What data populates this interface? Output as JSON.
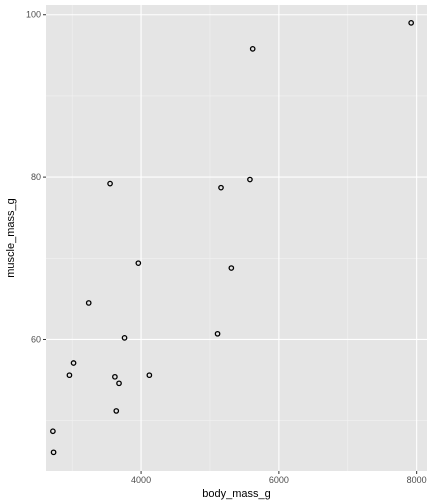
{
  "colors": {
    "panel_background": "#e5e5e5",
    "grid_major": "#ffffff",
    "grid_minor": "#f2f2f2",
    "tick_text": "#4d4d4d",
    "tick_mark": "#333333",
    "point_stroke": "#000000"
  },
  "chart_data": {
    "type": "scatter",
    "xlabel": "body_mass_g",
    "ylabel": "muscle_mass_g",
    "xlim": [
      2620,
      8150
    ],
    "ylim": [
      43.8,
      101.2
    ],
    "x_ticks": [
      4000,
      6000,
      8000
    ],
    "x_tick_labels": [
      "4000",
      "6000",
      "8000"
    ],
    "x_minor_ticks": [
      3000,
      5000,
      7000
    ],
    "y_ticks": [
      60,
      80,
      100
    ],
    "y_tick_labels": [
      "60",
      "80",
      "100"
    ],
    "y_minor_ticks": [
      50,
      70,
      90
    ],
    "grid": true,
    "legend": "none",
    "point_style": "hollow circle",
    "x": [
      7920,
      5620,
      5580,
      5160,
      3550,
      3960,
      5310,
      3240,
      3760,
      5110,
      3020,
      2960,
      3620,
      4120,
      3680,
      3640,
      2720,
      2730
    ],
    "y": [
      99.0,
      95.8,
      79.7,
      78.7,
      79.2,
      69.4,
      68.8,
      64.5,
      60.2,
      60.7,
      57.1,
      55.6,
      55.4,
      55.6,
      54.6,
      51.2,
      48.7,
      46.1
    ]
  }
}
